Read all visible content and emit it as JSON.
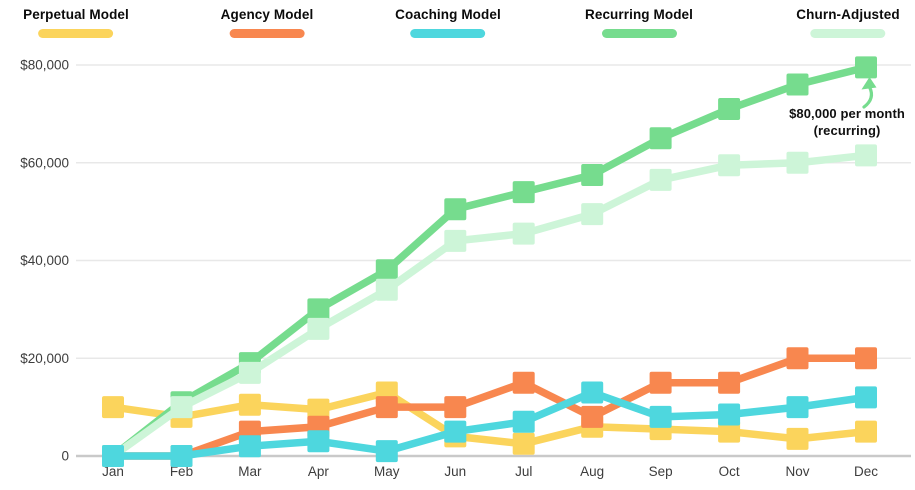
{
  "chart_data": {
    "type": "line",
    "title": "",
    "x": [
      "Jan",
      "Feb",
      "Mar",
      "Apr",
      "May",
      "Jun",
      "Jul",
      "Aug",
      "Sep",
      "Oct",
      "Nov",
      "Dec"
    ],
    "series": [
      {
        "name": "Perpetual Model",
        "color": "#FBD45C",
        "values": [
          10000,
          8000,
          10500,
          9500,
          13000,
          4000,
          2500,
          6000,
          5500,
          5000,
          3500,
          5000
        ]
      },
      {
        "name": "Agency Model",
        "color": "#F8874F",
        "values": [
          0,
          0,
          5000,
          6000,
          10000,
          10000,
          15000,
          8000,
          15000,
          15000,
          20000,
          20000
        ]
      },
      {
        "name": "Coaching Model",
        "color": "#4ED7DE",
        "values": [
          0,
          0,
          2000,
          3000,
          1000,
          5000,
          7000,
          13000,
          8000,
          8500,
          10000,
          12000
        ]
      },
      {
        "name": "Recurring Model",
        "color": "#76DC8E",
        "values": [
          0,
          11000,
          19000,
          30000,
          38000,
          50500,
          54000,
          57500,
          65000,
          71000,
          76000,
          79500
        ]
      },
      {
        "name": "Churn-Adjusted",
        "color": "#CDF5D8",
        "values": [
          0,
          10000,
          17000,
          26000,
          34000,
          44000,
          45500,
          49500,
          56500,
          59500,
          60000,
          61500
        ]
      }
    ],
    "ylim": [
      0,
      80000
    ],
    "yticks": [
      {
        "value": 80000,
        "label": "$80,000"
      },
      {
        "value": 60000,
        "label": "$60,000"
      },
      {
        "value": 40000,
        "label": "$40,000"
      },
      {
        "value": 20000,
        "label": "$20,000"
      },
      {
        "value": 0,
        "label": "0"
      }
    ],
    "grid": true,
    "legend_position": "top"
  },
  "legend": {
    "items": [
      {
        "label": "Perpetual Model",
        "color": "#FBD45C"
      },
      {
        "label": "Agency Model",
        "color": "#F8874F"
      },
      {
        "label": "Coaching Model",
        "color": "#4ED7DE"
      },
      {
        "label": "Recurring Model",
        "color": "#76DC8E"
      },
      {
        "label": "Churn-Adjusted",
        "color": "#CDF5D8"
      }
    ]
  },
  "annotation": {
    "line1": "$80,000 per month",
    "line2": "(recurring)",
    "arrow_color": "#76DC8E"
  }
}
